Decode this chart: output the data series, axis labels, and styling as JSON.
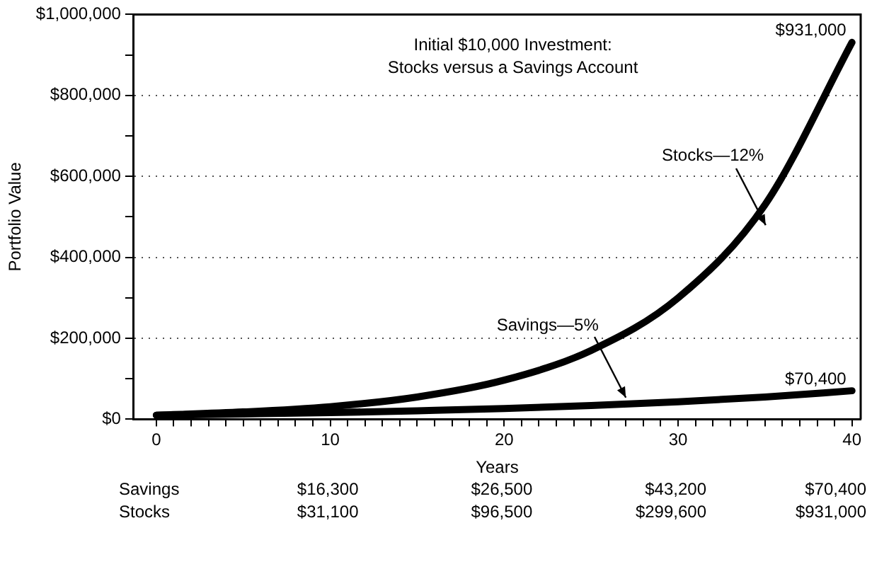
{
  "chart_data": {
    "type": "line",
    "title": "Initial $10,000 Investment:\nStocks versus a Savings Account",
    "xlabel": "Years",
    "ylabel": "Portfolio Value",
    "series": [
      {
        "name": "Savings—5%",
        "color": "#000000",
        "x": [
          0,
          5,
          10,
          15,
          20,
          25,
          30,
          35,
          40
        ],
        "values": [
          10000,
          13000,
          16300,
          21000,
          26500,
          34000,
          43200,
          55000,
          70400
        ]
      },
      {
        "name": "Stocks—12%",
        "color": "#000000",
        "x": [
          0,
          5,
          10,
          15,
          20,
          25,
          30,
          35,
          40
        ],
        "values": [
          10000,
          18000,
          31100,
          55000,
          96500,
          170000,
          299600,
          530000,
          931000
        ]
      }
    ],
    "annotations": [
      "Savings",
      "$16,300",
      "$26,500",
      "$43,200",
      "$70,400",
      "Stocks",
      "$31,100",
      "$96,500",
      "$299,600",
      "$931,000",
      {
        "text": "$931,000",
        "x": 40,
        "y": 931000
      },
      {
        "text": "$70,400",
        "x": 40,
        "y": 70400
      }
    ],
    "xlim": [
      -1.3,
      40.5
    ],
    "ylim": [
      0,
      1000000
    ],
    "xticks": [
      0,
      {
        "value": 1,
        "label": null
      },
      {
        "value": 2,
        "label": null
      },
      {
        "value": 3,
        "label": null
      },
      {
        "value": 4,
        "label": null
      },
      {
        "value": 5,
        "label": null
      },
      {
        "value": 6,
        "label": null
      },
      {
        "value": 7,
        "label": null
      },
      {
        "value": 8,
        "label": null
      },
      {
        "value": 9,
        "label": null
      },
      10,
      {
        "value": 11,
        "label": null
      },
      {
        "value": 12,
        "label": null
      },
      {
        "value": 13,
        "label": null
      },
      {
        "value": 14,
        "label": null
      },
      {
        "value": 15,
        "label": null
      },
      {
        "value": 16,
        "label": null
      },
      {
        "value": 17,
        "label": null
      },
      {
        "value": 18,
        "label": null
      },
      {
        "value": 19,
        "label": null
      },
      20,
      {
        "value": 21,
        "label": null
      },
      {
        "value": 22,
        "label": null
      },
      {
        "value": 23,
        "label": null
      },
      {
        "value": 24,
        "label": null
      },
      {
        "value": 25,
        "label": null
      },
      {
        "value": 26,
        "label": null
      },
      {
        "value": 27,
        "label": null
      },
      {
        "value": 28,
        "label": null
      },
      {
        "value": 29,
        "label": null
      },
      30,
      {
        "value": 31,
        "label": null
      },
      {
        "value": 32,
        "label": null
      },
      {
        "value": 33,
        "label": null
      },
      {
        "value": 34,
        "label": null
      },
      {
        "value": 35,
        "label": null
      },
      {
        "value": 36,
        "label": null
      },
      {
        "value": 37,
        "label": null
      },
      {
        "value": 38,
        "label": null
      },
      {
        "value": 39,
        "label": null
      },
      40
    ],
    "yticks": [
      {
        "value": 0,
        "label": "$0"
      },
      {
        "value": 100000,
        "label": null
      },
      {
        "value": 200000,
        "label": "$200,000"
      },
      {
        "value": 300000,
        "label": null
      },
      {
        "value": 400000,
        "label": "$400,000"
      },
      {
        "value": 500000,
        "label": null
      },
      {
        "value": 600000,
        "label": "$600,000"
      },
      {
        "value": 700000,
        "label": null
      },
      {
        "value": 800000,
        "label": "$800,000"
      },
      {
        "value": 900000,
        "label": null
      },
      {
        "value": 1000000,
        "label": "$1,000,000"
      }
    ],
    "grid": "y",
    "legend": false,
    "marker": "none",
    "line_style": "solid"
  }
}
